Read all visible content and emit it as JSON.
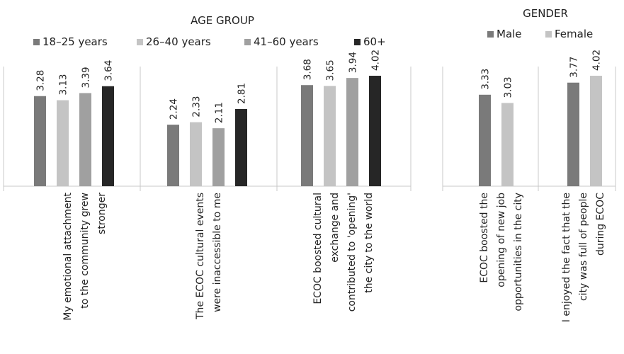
{
  "chart_data": [
    {
      "type": "bar",
      "title": "AGE GROUP",
      "categories": [
        [
          "My emotional attachment",
          "to the community  grew",
          "stronger"
        ],
        [
          "The ECOC cultural events",
          "were inaccessible to me"
        ],
        [
          "ECOC boosted cultural",
          "exchange and",
          "contributed to 'opening'",
          "the city to the world"
        ]
      ],
      "series": [
        {
          "name": "18–25 years",
          "color": "#7a7a7a",
          "values": [
            3.28,
            2.24,
            3.68
          ]
        },
        {
          "name": "26–40 years",
          "color": "#c4c4c4",
          "values": [
            3.13,
            2.33,
            3.65
          ]
        },
        {
          "name": "41–60  years",
          "color": "#a0a0a0",
          "values": [
            3.39,
            2.11,
            3.94
          ]
        },
        {
          "name": "60+",
          "color": "#262626",
          "values": [
            3.64,
            2.81,
            4.02
          ]
        }
      ],
      "grid": false,
      "legend_position": "top"
    },
    {
      "type": "bar",
      "title": "GENDER",
      "categories": [
        [
          "ECOC boosted the",
          "opening of new job",
          "opportunities in the city"
        ],
        [
          "I enjoyed the fact that the",
          "city was full of people",
          "during ECOC"
        ]
      ],
      "series": [
        {
          "name": "Male",
          "color": "#7a7a7a",
          "values": [
            3.33,
            3.77
          ]
        },
        {
          "name": "Female",
          "color": "#c4c4c4",
          "values": [
            3.03,
            4.02
          ]
        }
      ],
      "grid": false,
      "legend_position": "top"
    }
  ]
}
